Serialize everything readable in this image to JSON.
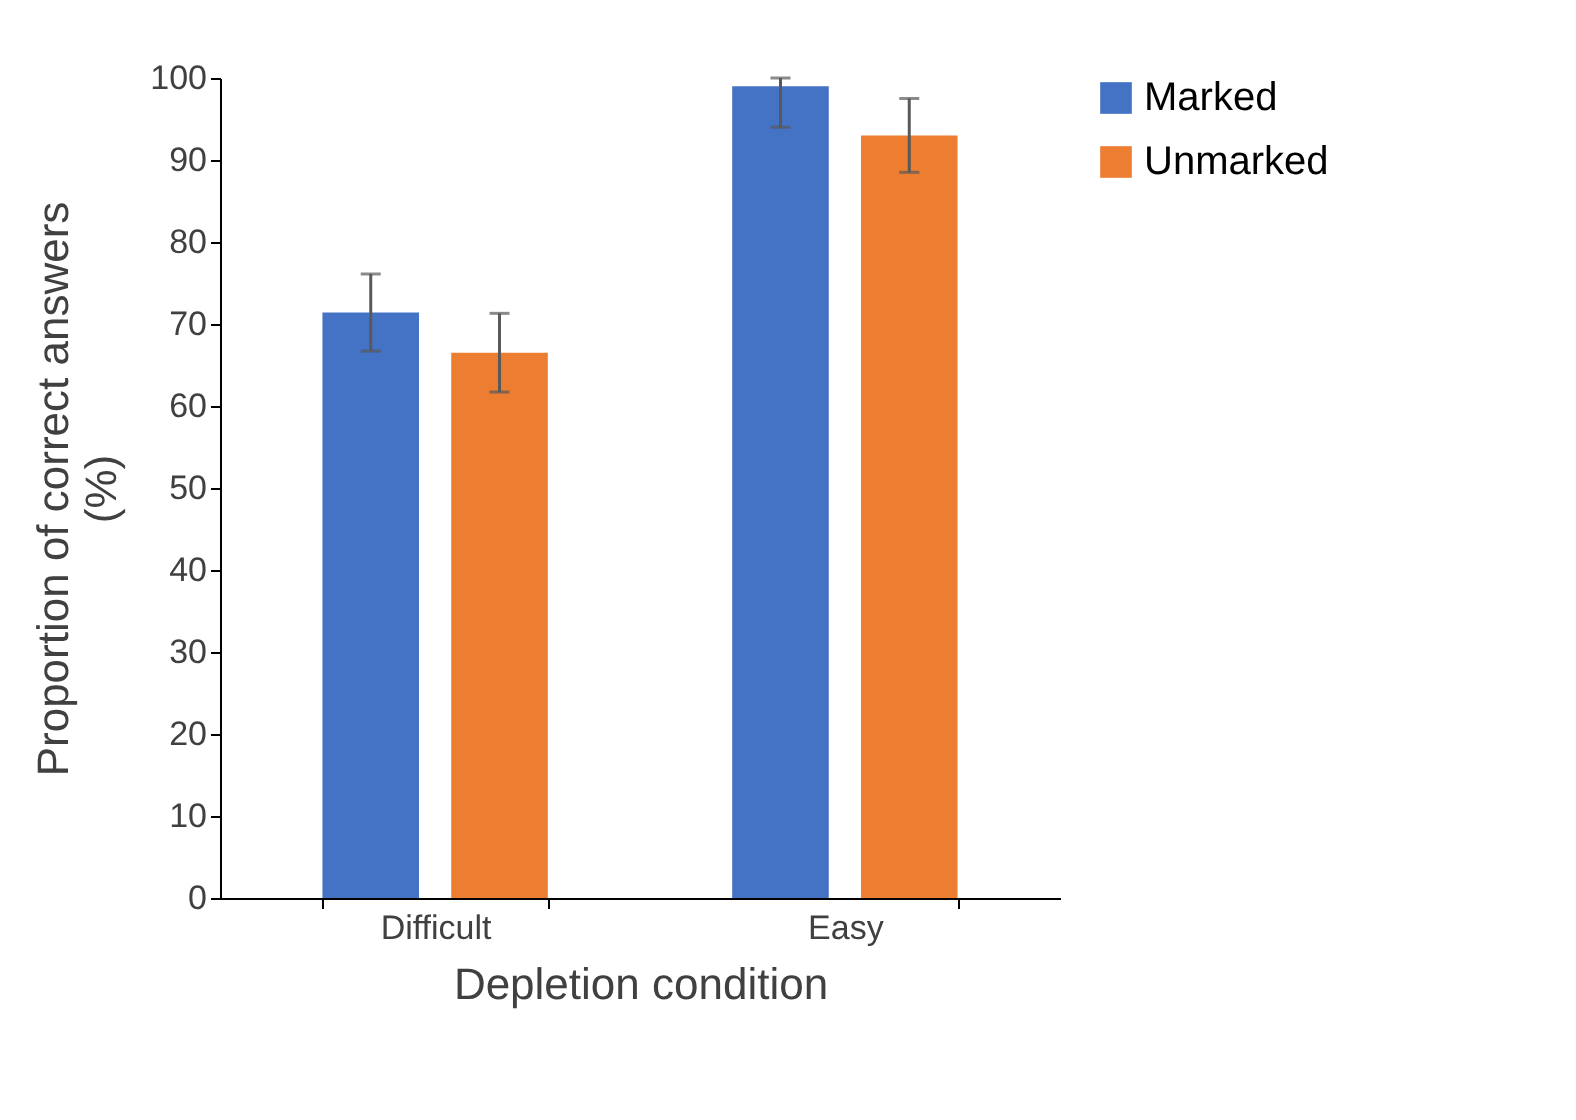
{
  "chart_data": {
    "type": "bar",
    "xlabel": "Depletion condition",
    "ylabel": "Proportion of correct answers (%)",
    "categories": [
      "Difficult",
      "Easy"
    ],
    "series": [
      {
        "name": "Marked",
        "color": "#4472c4",
        "values": [
          71.4,
          99
        ],
        "errors": [
          4.7,
          [
            94,
            100
          ]
        ]
      },
      {
        "name": "Unmarked",
        "color": "#ed7d31",
        "values": [
          66.5,
          93
        ],
        "errors": [
          4.8,
          4.5
        ]
      }
    ],
    "ylim": [
      0,
      100
    ],
    "yticks": [
      0,
      10,
      20,
      30,
      40,
      50,
      60,
      70,
      80,
      90,
      100
    ],
    "legend": "right",
    "grid": false
  }
}
